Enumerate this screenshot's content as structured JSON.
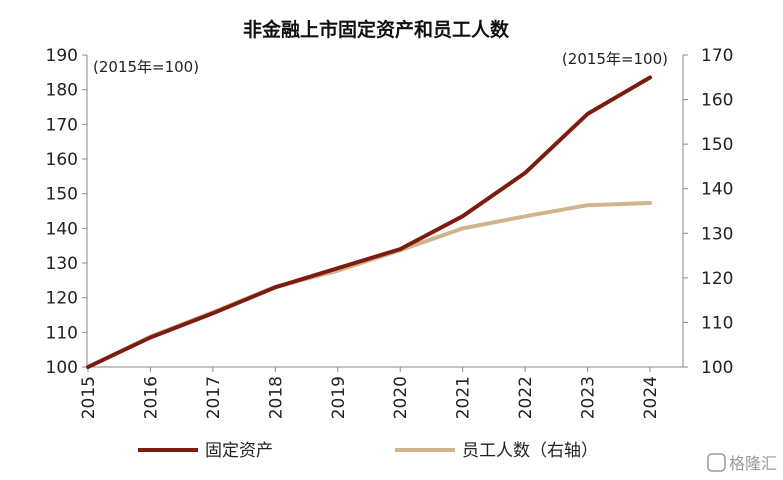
{
  "chart_data": {
    "type": "line",
    "title": "非金融上市固定资产和员工人数",
    "left_unit_note": "(2015年=100)",
    "right_unit_note": "(2015年=100)",
    "x": [
      "2015",
      "2016",
      "2017",
      "2018",
      "2019",
      "2020",
      "2021",
      "2022",
      "2023",
      "2024"
    ],
    "y_left": {
      "ylim": [
        100,
        190
      ],
      "ticks": [
        100,
        110,
        120,
        130,
        140,
        150,
        160,
        170,
        180,
        190
      ]
    },
    "y_right": {
      "ylim": [
        100,
        170
      ],
      "ticks": [
        100,
        110,
        120,
        130,
        140,
        150,
        160,
        170
      ]
    },
    "series": [
      {
        "name": "固定资产",
        "axis": "left",
        "color": "#7B1C10",
        "values": [
          100,
          108.5,
          115.5,
          123,
          128.5,
          134,
          143.5,
          156,
          173,
          183.5
        ]
      },
      {
        "name": "员工人数（右轴）",
        "axis": "right",
        "color": "#D2B48C",
        "values": [
          100,
          106.8,
          112.3,
          118,
          121.6,
          126.2,
          131.1,
          133.8,
          136.3,
          136.8
        ]
      }
    ],
    "legend_position": "bottom",
    "grid": false
  },
  "watermark": "格隆汇"
}
